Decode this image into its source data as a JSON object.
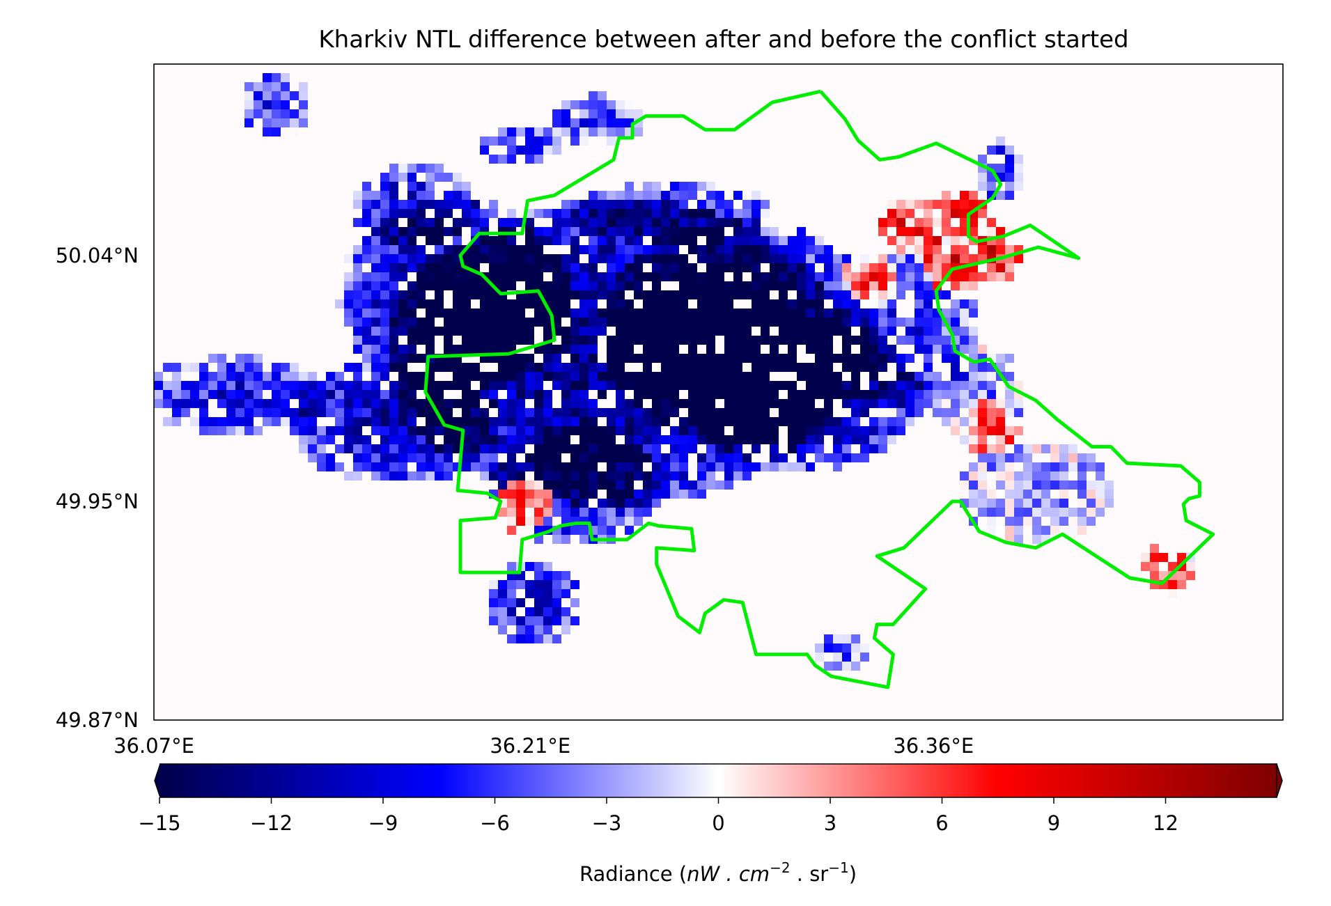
{
  "chart_data": {
    "type": "heatmap",
    "title": "Kharkiv NTL difference between after and before the conflict started",
    "x_ticks": [
      "36.07°E",
      "36.21°E",
      "36.36°E"
    ],
    "x_tick_values": [
      36.07,
      36.21,
      36.36
    ],
    "y_ticks": [
      "50.04°N",
      "49.95°N",
      "49.87°N"
    ],
    "y_tick_values": [
      50.04,
      49.95,
      49.87
    ],
    "xlim": [
      36.07,
      36.49
    ],
    "ylim": [
      49.87,
      50.11
    ],
    "colormap": "seismic",
    "colorbar": {
      "label_prefix": "Radiance (",
      "label_math": "nW . cm",
      "label_sup1": "−2",
      "label_mid": " . sr",
      "label_sup2": "−1",
      "label_suffix": ")",
      "range": [
        -15,
        15
      ],
      "ticks": [
        "−15",
        "−12",
        "−9",
        "−6",
        "−3",
        "0",
        "3",
        "6",
        "9",
        "12"
      ],
      "tick_values": [
        -15,
        -12,
        -9,
        -6,
        -3,
        0,
        3,
        6,
        9,
        12
      ],
      "extend": "both"
    },
    "boundary_color": "#00ee00",
    "boundary": [
      [
        36.318,
        50.1
      ],
      [
        36.3,
        50.096
      ],
      [
        36.286,
        50.086
      ],
      [
        36.275,
        50.086
      ],
      [
        36.267,
        50.091
      ],
      [
        36.253,
        50.091
      ],
      [
        36.248,
        50.088
      ],
      [
        36.248,
        50.083
      ],
      [
        36.243,
        50.083
      ],
      [
        36.241,
        50.075
      ],
      [
        36.219,
        50.062
      ],
      [
        36.209,
        50.06
      ],
      [
        36.207,
        50.048
      ],
      [
        36.191,
        50.048
      ],
      [
        36.184,
        50.04
      ],
      [
        36.185,
        50.036
      ],
      [
        36.192,
        50.033
      ],
      [
        36.199,
        50.026
      ],
      [
        36.213,
        50.027
      ],
      [
        36.218,
        50.018
      ],
      [
        36.219,
        50.009
      ],
      [
        36.202,
        50.004
      ],
      [
        36.172,
        50.003
      ],
      [
        36.171,
        49.99
      ],
      [
        36.178,
        49.978
      ],
      [
        36.185,
        49.976
      ],
      [
        36.183,
        49.954
      ],
      [
        36.194,
        49.953
      ],
      [
        36.199,
        49.95
      ],
      [
        36.197,
        49.944
      ],
      [
        36.184,
        49.943
      ],
      [
        36.184,
        49.924
      ],
      [
        36.206,
        49.924
      ],
      [
        36.207,
        49.936
      ],
      [
        36.217,
        49.939
      ],
      [
        36.221,
        49.941
      ],
      [
        36.227,
        49.942
      ],
      [
        36.232,
        49.942
      ],
      [
        36.233,
        49.936
      ],
      [
        36.246,
        49.936
      ],
      [
        36.254,
        49.942
      ],
      [
        36.258,
        49.941
      ],
      [
        36.27,
        49.94
      ],
      [
        36.271,
        49.932
      ],
      [
        36.257,
        49.933
      ],
      [
        36.257,
        49.927
      ],
      [
        36.265,
        49.908
      ],
      [
        36.273,
        49.902
      ],
      [
        36.275,
        49.909
      ],
      [
        36.282,
        49.914
      ],
      [
        36.289,
        49.913
      ],
      [
        36.294,
        49.894
      ],
      [
        36.313,
        49.894
      ],
      [
        36.316,
        49.89
      ],
      [
        36.322,
        49.886
      ],
      [
        36.343,
        49.882
      ],
      [
        36.345,
        49.894
      ],
      [
        36.338,
        49.9
      ],
      [
        36.339,
        49.905
      ],
      [
        36.345,
        49.905
      ],
      [
        36.357,
        49.918
      ],
      [
        36.339,
        49.93
      ],
      [
        36.349,
        49.933
      ],
      [
        36.367,
        49.95
      ],
      [
        36.37,
        49.95
      ],
      [
        36.377,
        49.939
      ],
      [
        36.387,
        49.935
      ],
      [
        36.398,
        49.933
      ],
      [
        36.408,
        49.938
      ],
      [
        36.433,
        49.922
      ],
      [
        36.445,
        49.92
      ],
      [
        36.464,
        49.938
      ],
      [
        36.454,
        49.943
      ],
      [
        36.453,
        49.949
      ],
      [
        36.455,
        49.951
      ],
      [
        36.459,
        49.952
      ],
      [
        36.459,
        49.957
      ],
      [
        36.452,
        49.963
      ],
      [
        36.432,
        49.964
      ],
      [
        36.426,
        49.97
      ],
      [
        36.419,
        49.97
      ],
      [
        36.406,
        49.98
      ],
      [
        36.398,
        49.987
      ],
      [
        36.388,
        49.992
      ],
      [
        36.381,
        50.002
      ],
      [
        36.375,
        50.001
      ],
      [
        36.368,
        50.005
      ],
      [
        36.367,
        50.011
      ],
      [
        36.362,
        50.02
      ],
      [
        36.361,
        50.027
      ],
      [
        36.367,
        50.035
      ],
      [
        36.385,
        50.039
      ],
      [
        36.399,
        50.043
      ],
      [
        36.414,
        50.039
      ],
      [
        36.396,
        50.051
      ],
      [
        36.386,
        50.047
      ],
      [
        36.376,
        50.045
      ],
      [
        36.373,
        50.047
      ],
      [
        36.373,
        50.055
      ],
      [
        36.382,
        50.061
      ],
      [
        36.385,
        50.066
      ],
      [
        36.382,
        50.071
      ],
      [
        36.361,
        50.081
      ],
      [
        36.347,
        50.076
      ],
      [
        36.34,
        50.075
      ],
      [
        36.332,
        50.082
      ],
      [
        36.327,
        50.09
      ],
      [
        36.318,
        50.1
      ]
    ]
  }
}
